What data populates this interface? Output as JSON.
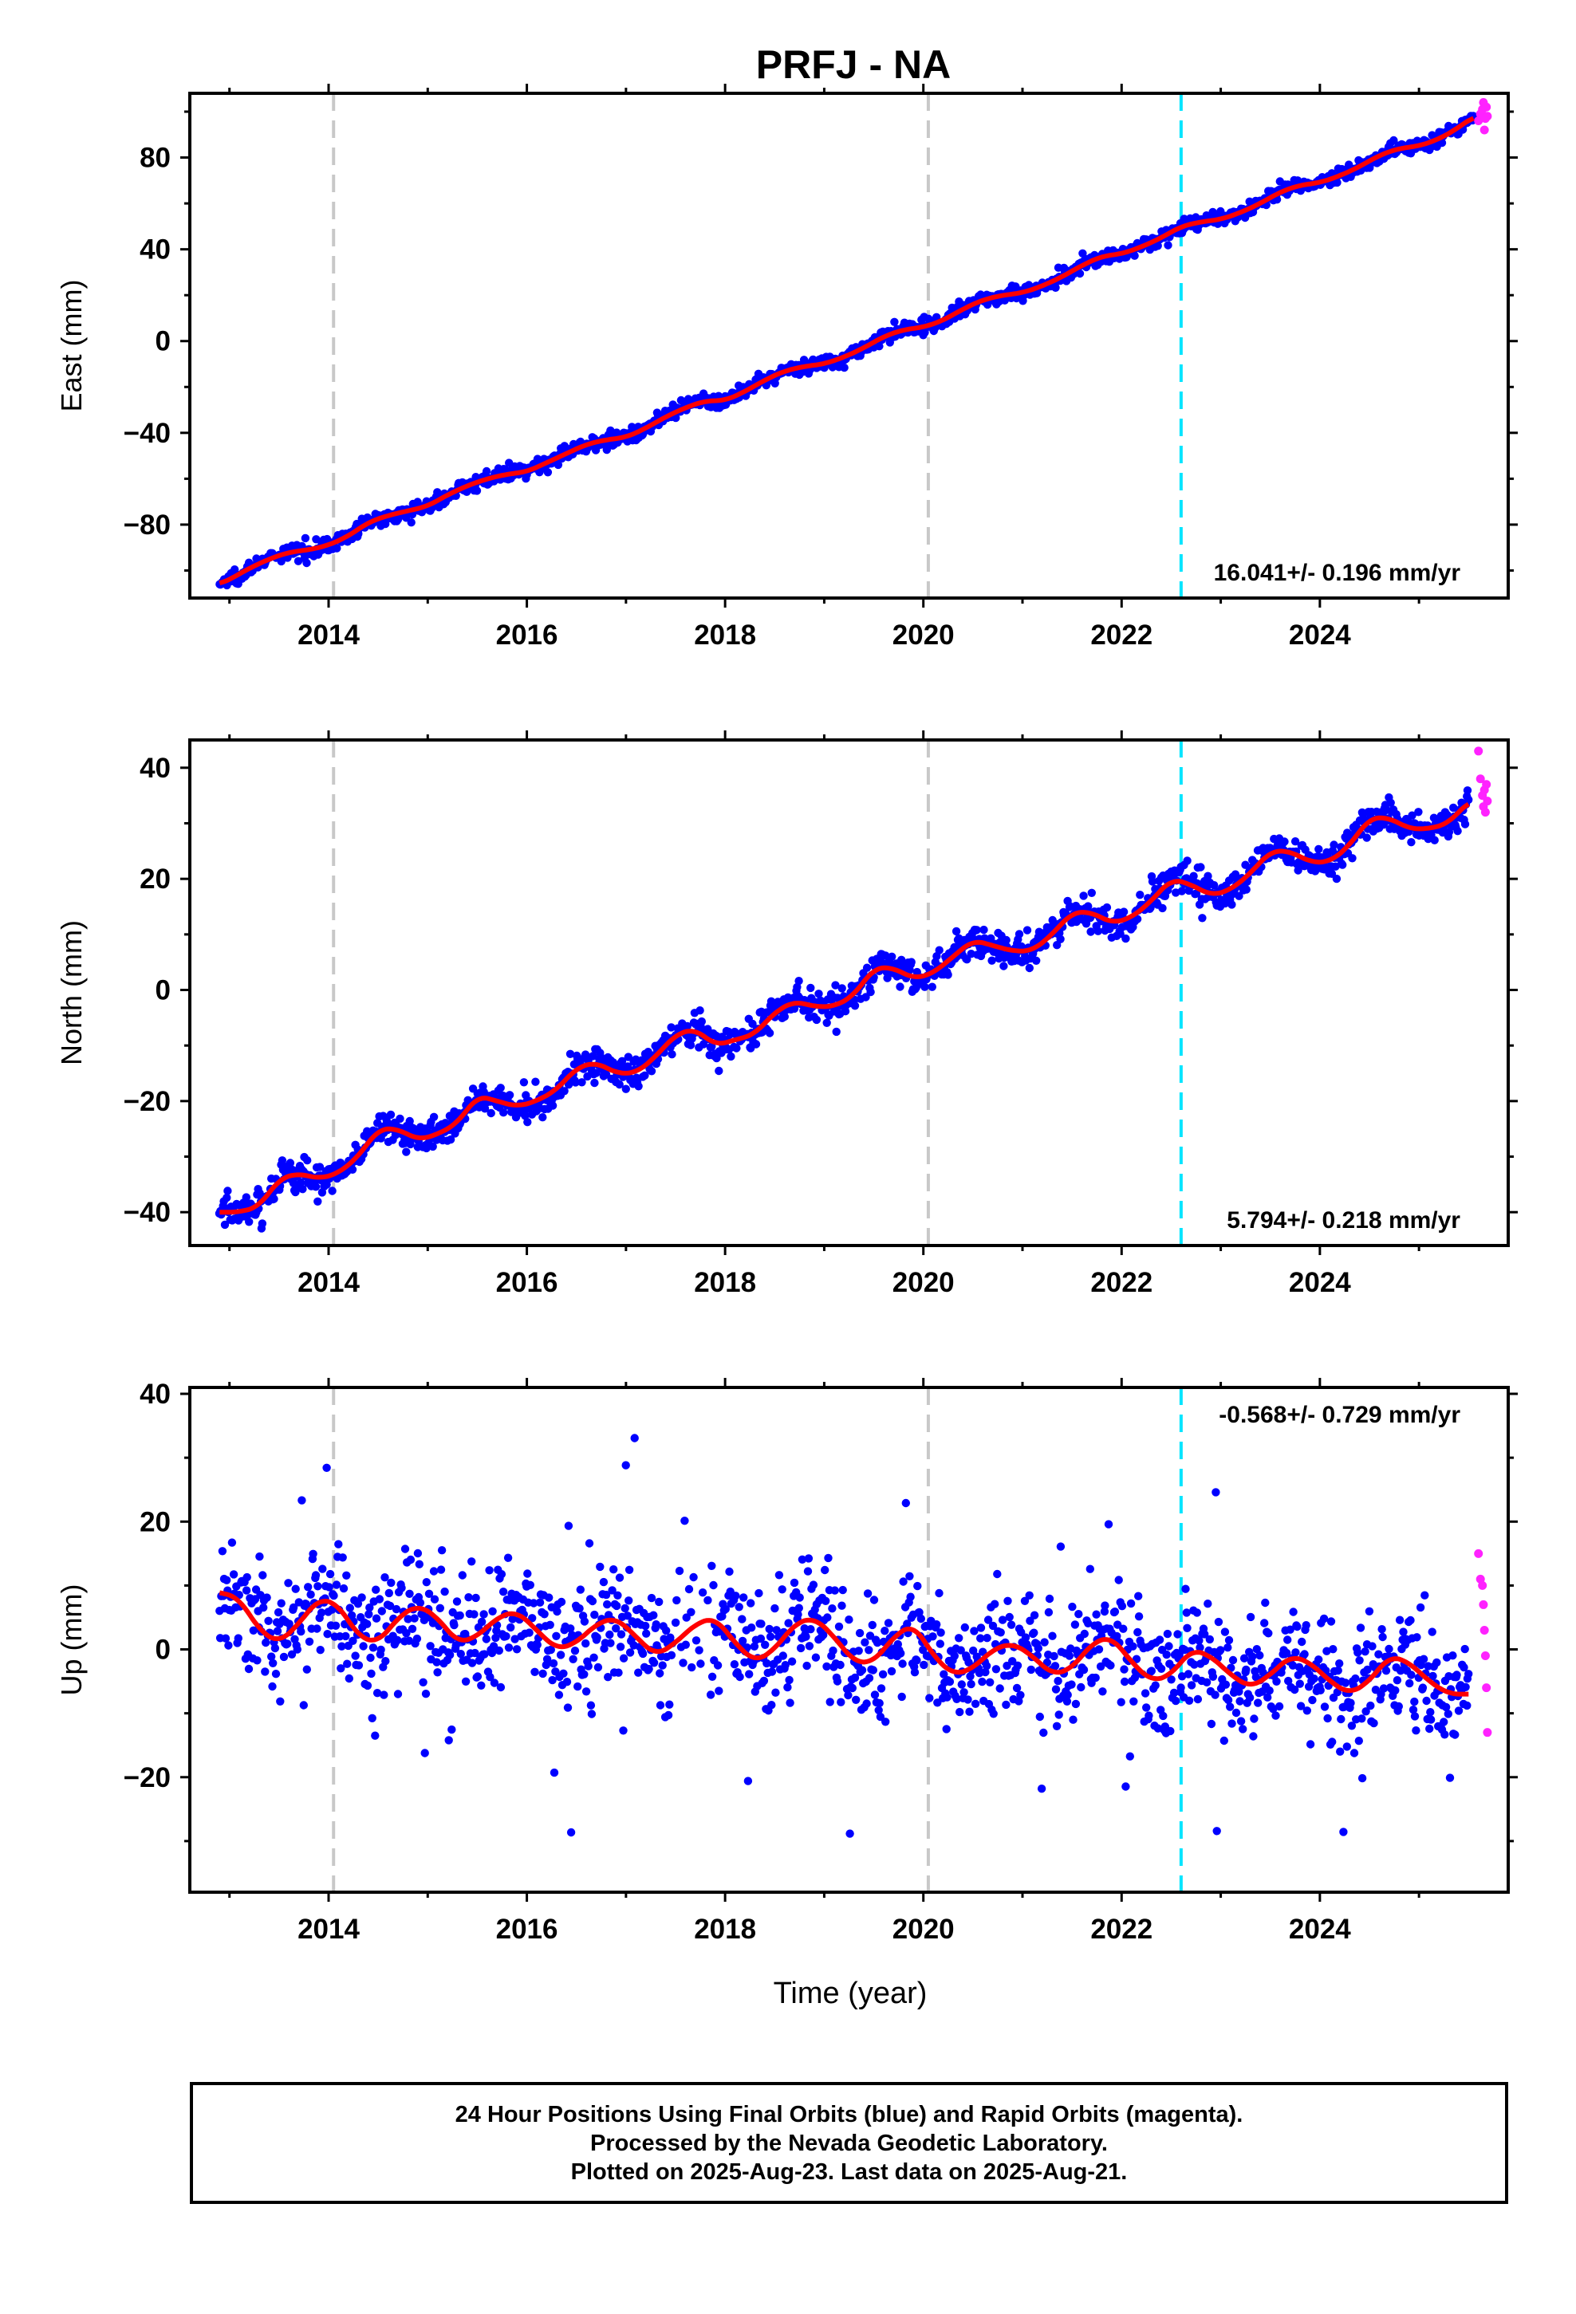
{
  "chart_data": {
    "type": "scatter",
    "title": "PRFJ - NA",
    "xlabel": "Time (year)",
    "xlim": [
      2012.6,
      2025.9
    ],
    "x_ticks": [
      "2014",
      "2016",
      "2018",
      "2020",
      "2022",
      "2024"
    ],
    "x_tick_values": [
      2014,
      2016,
      2018,
      2020,
      2022,
      2024
    ],
    "vertical_lines": [
      {
        "x": 2014.05,
        "color": "#c8c8c8",
        "style": "dashed"
      },
      {
        "x": 2020.05,
        "color": "#c8c8c8",
        "style": "dashed"
      },
      {
        "x": 2022.6,
        "color": "#00e5ff",
        "style": "dashed"
      }
    ],
    "colors": {
      "final": "#0000ff",
      "rapid": "#ff22ff",
      "model": "#ff0000"
    },
    "panels": [
      {
        "ylabel": "East (mm)",
        "ylim": [
          -112,
          108
        ],
        "y_ticks": [
          "80",
          "40",
          "0",
          "−40",
          "−80"
        ],
        "y_tick_values": [
          80,
          40,
          0,
          -40,
          -80
        ],
        "rate_label": "16.041+/- 0.196 mm/yr",
        "series": [
          {
            "name": "Final Orbits",
            "color": "#0000ff",
            "x": [
              2012.9,
              2013.0,
              2013.2,
              2013.4,
              2013.6,
              2013.8,
              2014.0,
              2014.2,
              2014.4,
              2014.6,
              2014.8,
              2015.0,
              2015.2,
              2015.4,
              2015.6,
              2015.8,
              2016.0,
              2016.2,
              2016.4,
              2016.6,
              2016.8,
              2017.0,
              2017.2,
              2017.4,
              2017.6,
              2017.8,
              2018.0,
              2018.2,
              2018.4,
              2018.6,
              2018.8,
              2019.0,
              2019.2,
              2019.4,
              2019.6,
              2019.8,
              2020.0,
              2020.2,
              2020.4,
              2020.6,
              2020.8,
              2021.0,
              2021.2,
              2021.4,
              2021.6,
              2021.8,
              2022.0,
              2022.2,
              2022.4,
              2022.6,
              2022.8,
              2023.0,
              2023.2,
              2023.4,
              2023.6,
              2023.8,
              2024.0,
              2024.2,
              2024.4,
              2024.6,
              2024.8,
              2025.0,
              2025.2,
              2025.4,
              2025.55
            ],
            "y": [
              -106,
              -104,
              -99,
              -95,
              -92,
              -91,
              -89,
              -85,
              -79,
              -76,
              -74,
              -72,
              -67,
              -63,
              -60,
              -58,
              -57,
              -53,
              -49,
              -45,
              -43,
              -42,
              -38,
              -33,
              -29,
              -26,
              -26,
              -22,
              -17,
              -13,
              -11,
              -10,
              -7,
              -3,
              2,
              5,
              6,
              9,
              14,
              18,
              20,
              21,
              24,
              28,
              33,
              37,
              38,
              41,
              45,
              50,
              52,
              53,
              56,
              60,
              65,
              68,
              69,
              72,
              76,
              81,
              84,
              85,
              88,
              93,
              98
            ]
          },
          {
            "name": "Rapid Orbits",
            "color": "#ff22ff",
            "x": [
              2025.6,
              2025.62,
              2025.64,
              2025.65,
              2025.66,
              2025.67,
              2025.68,
              2025.69
            ],
            "y": [
              96,
              99,
              101,
              104,
              92,
              97,
              102,
              98
            ]
          }
        ]
      },
      {
        "ylabel": "North (mm)",
        "ylim": [
          -46,
          45
        ],
        "y_ticks": [
          "40",
          "20",
          "0",
          "−20",
          "−40"
        ],
        "y_tick_values": [
          40,
          20,
          0,
          -20,
          -40
        ],
        "rate_label": "5.794+/- 0.218 mm/yr",
        "series": [
          {
            "name": "Final Orbits",
            "color": "#0000ff",
            "x": [
              2012.9,
              2013.1,
              2013.3,
              2013.5,
              2013.7,
              2013.9,
              2014.1,
              2014.3,
              2014.5,
              2014.7,
              2014.9,
              2015.1,
              2015.3,
              2015.5,
              2015.7,
              2015.9,
              2016.1,
              2016.3,
              2016.5,
              2016.7,
              2016.9,
              2017.1,
              2017.3,
              2017.5,
              2017.7,
              2017.9,
              2018.1,
              2018.3,
              2018.5,
              2018.7,
              2018.9,
              2019.1,
              2019.3,
              2019.5,
              2019.7,
              2019.9,
              2020.1,
              2020.3,
              2020.5,
              2020.7,
              2020.9,
              2021.1,
              2021.3,
              2021.5,
              2021.7,
              2021.9,
              2022.1,
              2022.3,
              2022.5,
              2022.7,
              2022.9,
              2023.1,
              2023.3,
              2023.5,
              2023.7,
              2023.9,
              2024.1,
              2024.3,
              2024.5,
              2024.7,
              2024.9,
              2025.1,
              2025.3,
              2025.5
            ],
            "y": [
              -40,
              -40,
              -39,
              -34,
              -33,
              -34,
              -33,
              -30,
              -25,
              -25,
              -27,
              -26,
              -24,
              -19,
              -20,
              -21,
              -20,
              -18,
              -14,
              -13,
              -15,
              -15,
              -12,
              -8,
              -7,
              -10,
              -9,
              -8,
              -4,
              -2,
              -3,
              -3,
              -1,
              4,
              4,
              2,
              3,
              6,
              9,
              8,
              7,
              7,
              10,
              14,
              14,
              12,
              13,
              16,
              20,
              19,
              17,
              18,
              21,
              25,
              25,
              23,
              23,
              26,
              31,
              31,
              29,
              29,
              30,
              34
            ]
          },
          {
            "name": "Rapid Orbits",
            "color": "#ff22ff",
            "x": [
              2025.6,
              2025.62,
              2025.64,
              2025.65,
              2025.66,
              2025.67,
              2025.68,
              2025.69
            ],
            "y": [
              43,
              38,
              35,
              33,
              36,
              32,
              37,
              34
            ]
          }
        ]
      },
      {
        "ylabel": "Up (mm)",
        "ylim": [
          -38,
          41
        ],
        "y_ticks": [
          "40",
          "20",
          "0",
          "−20"
        ],
        "y_tick_values": [
          40,
          20,
          0,
          -20
        ],
        "rate_label": "-0.568+/- 0.729 mm/yr",
        "series": [
          {
            "name": "Final Orbits",
            "color": "#0000ff",
            "x": [
              2012.9,
              2013.1,
              2013.3,
              2013.5,
              2013.7,
              2013.9,
              2014.1,
              2014.3,
              2014.5,
              2014.7,
              2014.9,
              2015.1,
              2015.3,
              2015.5,
              2015.7,
              2015.9,
              2016.1,
              2016.3,
              2016.5,
              2016.7,
              2016.9,
              2017.1,
              2017.3,
              2017.5,
              2017.7,
              2017.9,
              2018.1,
              2018.3,
              2018.5,
              2018.7,
              2018.9,
              2019.1,
              2019.3,
              2019.5,
              2019.7,
              2019.9,
              2020.1,
              2020.3,
              2020.5,
              2020.7,
              2020.9,
              2021.1,
              2021.3,
              2021.5,
              2021.7,
              2021.9,
              2022.1,
              2022.3,
              2022.5,
              2022.7,
              2022.9,
              2023.1,
              2023.3,
              2023.5,
              2023.7,
              2023.9,
              2024.1,
              2024.3,
              2024.5,
              2024.7,
              2024.9,
              2025.1,
              2025.3,
              2025.5
            ],
            "y": [
              9,
              8,
              3,
              1,
              4,
              8,
              7,
              2,
              1,
              5,
              7,
              5,
              1,
              2,
              5,
              6,
              3,
              0,
              1,
              4,
              5,
              2,
              -1,
              1,
              4,
              5,
              1,
              -2,
              0,
              4,
              5,
              2,
              -2,
              -2,
              2,
              4,
              -1,
              -4,
              -3,
              0,
              1,
              -1,
              -4,
              -3,
              1,
              2,
              -2,
              -5,
              -4,
              0,
              -1,
              -4,
              -6,
              -4,
              -1,
              -2,
              -5,
              -7,
              -5,
              -1,
              -2,
              -5,
              -7,
              -7
            ]
          },
          {
            "name": "Rapid Orbits",
            "color": "#ff22ff",
            "x": [
              2025.6,
              2025.62,
              2025.64,
              2025.65,
              2025.66,
              2025.67,
              2025.68,
              2025.69
            ],
            "y": [
              15,
              11,
              10,
              7,
              3,
              -1,
              -6,
              -13
            ]
          }
        ]
      }
    ]
  },
  "caption": {
    "line1": "24 Hour Positions Using Final Orbits (blue) and Rapid Orbits (magenta).",
    "line2": "Processed by the Nevada Geodetic Laboratory.",
    "line3": "Plotted on 2025-Aug-23. Last data on 2025-Aug-21."
  }
}
